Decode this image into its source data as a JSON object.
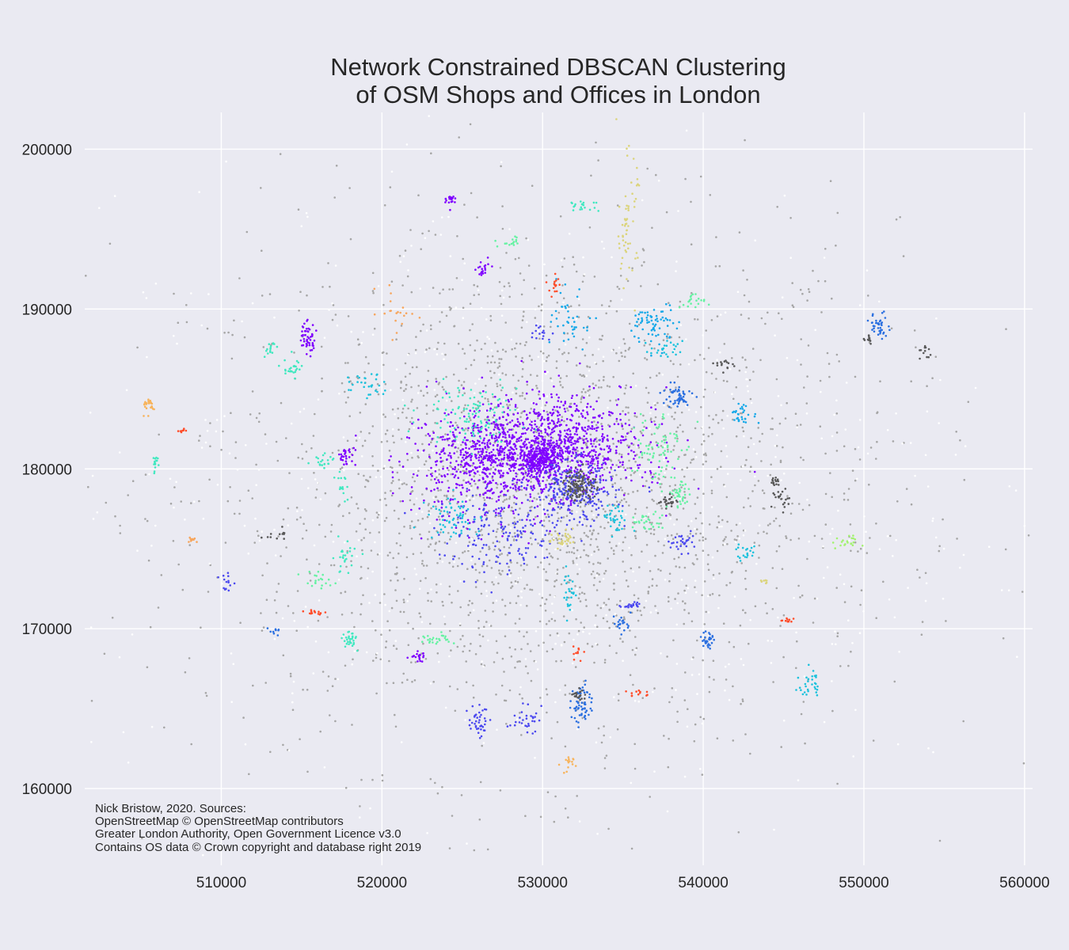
{
  "chart_data": {
    "type": "scatter",
    "title_lines": [
      "Network Constrained DBSCAN Clustering",
      "of OSM Shops and Offices in London"
    ],
    "xlabel": "",
    "ylabel": "",
    "xlim": [
      501500,
      560500
    ],
    "ylim": [
      155200,
      202300
    ],
    "x_ticks": [
      510000,
      520000,
      530000,
      540000,
      550000,
      560000
    ],
    "y_ticks": [
      160000,
      170000,
      180000,
      190000,
      200000
    ],
    "grid": true,
    "credits": [
      "Nick Bristow, 2020. Sources:",
      "OpenStreetMap © OpenStreetMap contributors",
      "Greater London Authority, Open Government Licence v3.0",
      "Contains OS data © Crown copyright and database right 2019"
    ],
    "colors": {
      "background": "#eaeaf2",
      "grid": "#ffffff",
      "noise_light": "#a6a6a6",
      "noise_white": "#ffffff",
      "cluster_dark": "#595959",
      "central_cluster": "#7f00ff",
      "south_cluster": "#4b48ef"
    },
    "clusters": [
      {
        "x": 529500,
        "y": 181000,
        "sx": 3200,
        "sy": 1300,
        "n": 900,
        "color": "#7f00ff"
      },
      {
        "x": 526500,
        "y": 180000,
        "sx": 2500,
        "sy": 1800,
        "n": 350,
        "color": "#7f00ff"
      },
      {
        "x": 531500,
        "y": 182500,
        "sx": 2500,
        "sy": 1500,
        "n": 260,
        "color": "#7f00ff"
      },
      {
        "x": 529800,
        "y": 180600,
        "sx": 500,
        "sy": 400,
        "n": 200,
        "color": "#7f00ff"
      },
      {
        "x": 532000,
        "y": 178500,
        "sx": 1300,
        "sy": 1000,
        "n": 260,
        "color": "#4b48ef"
      },
      {
        "x": 532300,
        "y": 179000,
        "sx": 500,
        "sy": 500,
        "n": 130,
        "color": "#595959"
      },
      {
        "x": 527500,
        "y": 175800,
        "sx": 2000,
        "sy": 1200,
        "n": 160,
        "color": "#4b48ef"
      },
      {
        "x": 524500,
        "y": 177000,
        "sx": 800,
        "sy": 700,
        "n": 60,
        "color": "#1cc2dc"
      },
      {
        "x": 525500,
        "y": 183500,
        "sx": 1500,
        "sy": 900,
        "n": 110,
        "color": "#41e8c0"
      },
      {
        "x": 537000,
        "y": 181500,
        "sx": 800,
        "sy": 1200,
        "n": 70,
        "color": "#66f2a3"
      },
      {
        "x": 538300,
        "y": 184500,
        "sx": 500,
        "sy": 400,
        "n": 50,
        "color": "#2a6fe0"
      },
      {
        "x": 537000,
        "y": 189000,
        "sx": 700,
        "sy": 700,
        "n": 70,
        "color": "#15a8e8"
      },
      {
        "x": 531800,
        "y": 189200,
        "sx": 600,
        "sy": 900,
        "n": 40,
        "color": "#15a8e8"
      },
      {
        "x": 535300,
        "y": 195500,
        "sx": 300,
        "sy": 2000,
        "n": 60,
        "color": "#dbd47c"
      },
      {
        "x": 532500,
        "y": 196500,
        "sx": 500,
        "sy": 200,
        "n": 20,
        "color": "#41e8c0"
      },
      {
        "x": 530700,
        "y": 191500,
        "sx": 200,
        "sy": 300,
        "n": 15,
        "color": "#ff4d2a"
      },
      {
        "x": 524300,
        "y": 196800,
        "sx": 150,
        "sy": 250,
        "n": 20,
        "color": "#7f00ff"
      },
      {
        "x": 526300,
        "y": 192400,
        "sx": 200,
        "sy": 300,
        "n": 20,
        "color": "#7f00ff"
      },
      {
        "x": 515300,
        "y": 188200,
        "sx": 300,
        "sy": 500,
        "n": 50,
        "color": "#7f00ff"
      },
      {
        "x": 514500,
        "y": 186300,
        "sx": 300,
        "sy": 400,
        "n": 25,
        "color": "#41e8c0"
      },
      {
        "x": 513000,
        "y": 187500,
        "sx": 200,
        "sy": 300,
        "n": 15,
        "color": "#41e8c0"
      },
      {
        "x": 517800,
        "y": 180800,
        "sx": 300,
        "sy": 300,
        "n": 30,
        "color": "#7f00ff"
      },
      {
        "x": 516500,
        "y": 180500,
        "sx": 400,
        "sy": 200,
        "n": 20,
        "color": "#41e8c0"
      },
      {
        "x": 517400,
        "y": 179200,
        "sx": 200,
        "sy": 500,
        "n": 15,
        "color": "#41e8c0"
      },
      {
        "x": 505500,
        "y": 184000,
        "sx": 250,
        "sy": 250,
        "n": 25,
        "color": "#f7b45d"
      },
      {
        "x": 505900,
        "y": 180300,
        "sx": 150,
        "sy": 300,
        "n": 15,
        "color": "#41e8c0"
      },
      {
        "x": 507600,
        "y": 182400,
        "sx": 100,
        "sy": 100,
        "n": 8,
        "color": "#ff4d2a"
      },
      {
        "x": 510300,
        "y": 172900,
        "sx": 200,
        "sy": 300,
        "n": 15,
        "color": "#4b48ef"
      },
      {
        "x": 517700,
        "y": 174500,
        "sx": 400,
        "sy": 500,
        "n": 25,
        "color": "#41e8c0"
      },
      {
        "x": 516000,
        "y": 173000,
        "sx": 500,
        "sy": 300,
        "n": 20,
        "color": "#66f2a3"
      },
      {
        "x": 518000,
        "y": 169300,
        "sx": 300,
        "sy": 300,
        "n": 30,
        "color": "#41e8c0"
      },
      {
        "x": 513300,
        "y": 169800,
        "sx": 200,
        "sy": 100,
        "n": 10,
        "color": "#2a6fe0"
      },
      {
        "x": 519000,
        "y": 185200,
        "sx": 600,
        "sy": 400,
        "n": 30,
        "color": "#1cc2dc"
      },
      {
        "x": 526000,
        "y": 164300,
        "sx": 300,
        "sy": 500,
        "n": 40,
        "color": "#4b48ef"
      },
      {
        "x": 528900,
        "y": 164300,
        "sx": 500,
        "sy": 400,
        "n": 30,
        "color": "#4b48ef"
      },
      {
        "x": 532400,
        "y": 165300,
        "sx": 300,
        "sy": 700,
        "n": 60,
        "color": "#2a6fe0"
      },
      {
        "x": 532300,
        "y": 165900,
        "sx": 200,
        "sy": 200,
        "n": 20,
        "color": "#595959"
      },
      {
        "x": 531700,
        "y": 172300,
        "sx": 200,
        "sy": 700,
        "n": 25,
        "color": "#1cc2dc"
      },
      {
        "x": 534900,
        "y": 170300,
        "sx": 300,
        "sy": 300,
        "n": 20,
        "color": "#2a6fe0"
      },
      {
        "x": 535500,
        "y": 171500,
        "sx": 300,
        "sy": 100,
        "n": 20,
        "color": "#4b48ef"
      },
      {
        "x": 540300,
        "y": 169300,
        "sx": 200,
        "sy": 300,
        "n": 30,
        "color": "#2a6fe0"
      },
      {
        "x": 546600,
        "y": 166500,
        "sx": 300,
        "sy": 500,
        "n": 30,
        "color": "#1cc2dc"
      },
      {
        "x": 551000,
        "y": 189000,
        "sx": 300,
        "sy": 400,
        "n": 40,
        "color": "#2a6fe0"
      },
      {
        "x": 542500,
        "y": 183400,
        "sx": 400,
        "sy": 300,
        "n": 30,
        "color": "#15a8e8"
      },
      {
        "x": 538600,
        "y": 178500,
        "sx": 400,
        "sy": 500,
        "n": 40,
        "color": "#66f2a3"
      },
      {
        "x": 536300,
        "y": 176700,
        "sx": 600,
        "sy": 300,
        "n": 30,
        "color": "#66f2a3"
      },
      {
        "x": 538800,
        "y": 175400,
        "sx": 500,
        "sy": 300,
        "n": 30,
        "color": "#4b48ef"
      },
      {
        "x": 542700,
        "y": 174800,
        "sx": 300,
        "sy": 300,
        "n": 20,
        "color": "#1cc2dc"
      },
      {
        "x": 544900,
        "y": 178000,
        "sx": 300,
        "sy": 400,
        "n": 20,
        "color": "#595959"
      },
      {
        "x": 534500,
        "y": 176800,
        "sx": 400,
        "sy": 500,
        "n": 35,
        "color": "#1cc2dc"
      },
      {
        "x": 531300,
        "y": 175600,
        "sx": 400,
        "sy": 300,
        "n": 30,
        "color": "#dbd47c"
      },
      {
        "x": 523400,
        "y": 169300,
        "sx": 500,
        "sy": 200,
        "n": 25,
        "color": "#66f2a3"
      },
      {
        "x": 522300,
        "y": 168200,
        "sx": 300,
        "sy": 200,
        "n": 20,
        "color": "#7f00ff"
      },
      {
        "x": 531500,
        "y": 161500,
        "sx": 200,
        "sy": 300,
        "n": 15,
        "color": "#f7b45d"
      },
      {
        "x": 543800,
        "y": 173000,
        "sx": 200,
        "sy": 150,
        "n": 8,
        "color": "#dbd47c"
      },
      {
        "x": 548800,
        "y": 175400,
        "sx": 400,
        "sy": 200,
        "n": 20,
        "color": "#a3f270"
      },
      {
        "x": 539300,
        "y": 190400,
        "sx": 400,
        "sy": 300,
        "n": 20,
        "color": "#66f2a3"
      },
      {
        "x": 537700,
        "y": 187400,
        "sx": 500,
        "sy": 300,
        "n": 25,
        "color": "#1cc2dc"
      },
      {
        "x": 529800,
        "y": 188500,
        "sx": 400,
        "sy": 300,
        "n": 15,
        "color": "#4b48ef"
      },
      {
        "x": 528000,
        "y": 194200,
        "sx": 500,
        "sy": 200,
        "n": 15,
        "color": "#66f2a3"
      },
      {
        "x": 521000,
        "y": 189800,
        "sx": 600,
        "sy": 800,
        "n": 20,
        "color": "#f7a65d"
      },
      {
        "x": 513500,
        "y": 176000,
        "sx": 300,
        "sy": 200,
        "n": 12,
        "color": "#595959"
      },
      {
        "x": 553800,
        "y": 187200,
        "sx": 200,
        "sy": 300,
        "n": 12,
        "color": "#595959"
      },
      {
        "x": 537800,
        "y": 178000,
        "sx": 300,
        "sy": 200,
        "n": 25,
        "color": "#595959"
      },
      {
        "x": 541400,
        "y": 186500,
        "sx": 300,
        "sy": 200,
        "n": 15,
        "color": "#595959"
      },
      {
        "x": 544500,
        "y": 179200,
        "sx": 150,
        "sy": 200,
        "n": 15,
        "color": "#595959"
      },
      {
        "x": 550200,
        "y": 188200,
        "sx": 200,
        "sy": 200,
        "n": 12,
        "color": "#595959"
      },
      {
        "x": 508200,
        "y": 175600,
        "sx": 200,
        "sy": 100,
        "n": 10,
        "color": "#f7a65d"
      },
      {
        "x": 515800,
        "y": 171000,
        "sx": 400,
        "sy": 100,
        "n": 15,
        "color": "#ff4d2a"
      },
      {
        "x": 536000,
        "y": 166000,
        "sx": 400,
        "sy": 150,
        "n": 12,
        "color": "#ff4d2a"
      },
      {
        "x": 532300,
        "y": 168500,
        "sx": 200,
        "sy": 200,
        "n": 10,
        "color": "#ff4d2a"
      },
      {
        "x": 545300,
        "y": 170500,
        "sx": 300,
        "sy": 100,
        "n": 10,
        "color": "#ff4d2a"
      }
    ],
    "noise": [
      {
        "x": 530000,
        "y": 178500,
        "sx": 11000,
        "sy": 8500,
        "n": 1700,
        "color": "#a6a6a6"
      },
      {
        "x": 530000,
        "y": 178500,
        "sx": 14000,
        "sy": 9500,
        "n": 700,
        "color": "#ffffff"
      },
      {
        "x": 530000,
        "y": 178500,
        "sx": 6000,
        "sy": 5000,
        "n": 600,
        "color": "#a6a6a6"
      }
    ]
  }
}
